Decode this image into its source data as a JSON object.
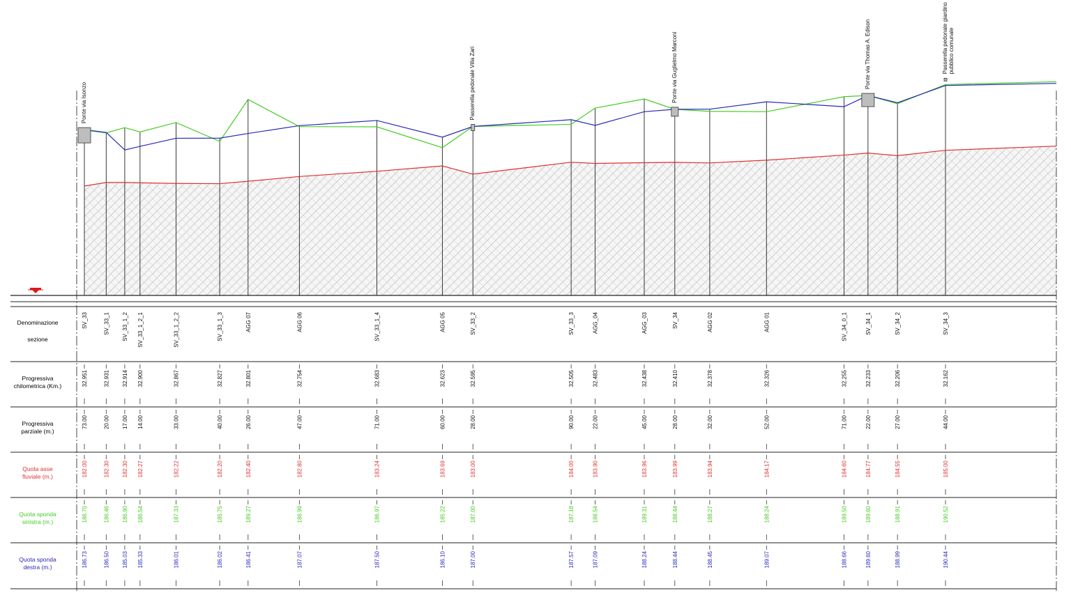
{
  "colors": {
    "thalweg": "#e03030",
    "left_bank": "#44cc22",
    "right_bank": "#2828b8",
    "ground_fill": "#eeeeee",
    "line": "#222222"
  },
  "reference_marker_icon": "water-level-marker-icon",
  "row_labels": {
    "denominazione": {
      "line1": "Denominazione",
      "line2": "sezione"
    },
    "progressiva_km": {
      "line1": "Progressiva",
      "line2": "chilometrica (Km.)"
    },
    "progressiva_parziale": {
      "line1": "Progressiva",
      "line2": "parziale (m.)"
    },
    "quota_asse": {
      "line1": "Quota asse",
      "line2": "fluviale (m.)"
    },
    "quota_sinistra": {
      "line1": "Quota sponda",
      "line2": "sinistra (m.)"
    },
    "quota_destra": {
      "line1": "Quota sponda",
      "line2": "destra (m.)"
    }
  },
  "structures": [
    {
      "label": "Ponte via Isonzo",
      "section": "SV_33"
    },
    {
      "label": "Passerella pedonale Villa Zari",
      "section": "SV_33_2"
    },
    {
      "label": "Ponte via Guglielmo Marconi",
      "section": "SV_34"
    },
    {
      "label": "Ponte via Thomas A. Edison",
      "section": "SV_34_1"
    },
    {
      "label": "Passerella pedonale giardino pubblico comunale",
      "section": "SV_34_3"
    }
  ],
  "sections": [
    {
      "name": "SV_33",
      "km": "32.951",
      "parziale": "73.00",
      "asse": "182.00",
      "sinistra": "186.70",
      "destra": "186.73"
    },
    {
      "name": "SV_33_1",
      "km": "32.931",
      "parziale": "20.00",
      "asse": "182.30",
      "sinistra": "186.46",
      "destra": "186.50"
    },
    {
      "name": "SV_33_1_2",
      "km": "32.914",
      "parziale": "17.00",
      "asse": "182.30",
      "sinistra": "186.90",
      "destra": "185.03"
    },
    {
      "name": "SV_33_1_2_1",
      "km": "32.900",
      "parziale": "14.00",
      "asse": "182.27",
      "sinistra": "186.54",
      "destra": "185.33"
    },
    {
      "name": "SV_33_1_2_2",
      "km": "32.867",
      "parziale": "33.00",
      "asse": "182.22",
      "sinistra": "187.33",
      "destra": "186.01"
    },
    {
      "name": "SV_33_1_3",
      "km": "32.827",
      "parziale": "40.00",
      "asse": "182.20",
      "sinistra": "185.75",
      "destra": "186.02"
    },
    {
      "name": "AGG 07",
      "km": "32.801",
      "parziale": "26.00",
      "asse": "182.40",
      "sinistra": "189.27",
      "destra": "186.41"
    },
    {
      "name": "AGG 06",
      "km": "32.754",
      "parziale": "47.00",
      "asse": "182.80",
      "sinistra": "186.99",
      "destra": "187.07"
    },
    {
      "name": "SV_33_1_4",
      "km": "32.683",
      "parziale": "71.00",
      "asse": "183.24",
      "sinistra": "186.97",
      "destra": "187.50"
    },
    {
      "name": "AGG 05",
      "km": "32.623",
      "parziale": "60.00",
      "asse": "183.69",
      "sinistra": "185.22",
      "destra": "186.10"
    },
    {
      "name": "SV_33_2",
      "km": "32.595",
      "parziale": "28.00",
      "asse": "183.00",
      "sinistra": "187.00",
      "destra": "187.00"
    },
    {
      "name": "SV_33_3",
      "km": "32.505",
      "parziale": "90.00",
      "asse": "184.00",
      "sinistra": "187.18",
      "destra": "187.57"
    },
    {
      "name": "AGG_04",
      "km": "32.483",
      "parziale": "22.00",
      "asse": "183.90",
      "sinistra": "188.54",
      "destra": "187.09"
    },
    {
      "name": "AGG_03",
      "km": "32.438",
      "parziale": "45.00",
      "asse": "183.96",
      "sinistra": "189.31",
      "destra": "188.24"
    },
    {
      "name": "SV_34",
      "km": "32.410",
      "parziale": "28.00",
      "asse": "183.99",
      "sinistra": "188.44",
      "destra": "188.44"
    },
    {
      "name": "AGG 02",
      "km": "32.378",
      "parziale": "32.00",
      "asse": "183.94",
      "sinistra": "188.27",
      "destra": "188.45"
    },
    {
      "name": "AGG 01",
      "km": "32.326",
      "parziale": "52.00",
      "asse": "184.17",
      "sinistra": "188.24",
      "destra": "189.07"
    },
    {
      "name": "SV_34_0_1",
      "km": "32.255",
      "parziale": "71.00",
      "asse": "184.60",
      "sinistra": "189.50",
      "destra": "188.66"
    },
    {
      "name": "SV_34_1",
      "km": "32.233",
      "parziale": "22.00",
      "asse": "184.77",
      "sinistra": "189.60",
      "destra": "189.60"
    },
    {
      "name": "SV_34_2",
      "km": "32.206",
      "parziale": "27.00",
      "asse": "184.55",
      "sinistra": "188.91",
      "destra": "188.99"
    },
    {
      "name": "SV_34_3",
      "km": "32.162",
      "parziale": "44.00",
      "asse": "185.00",
      "sinistra": "190.52",
      "destra": "190.44"
    }
  ]
}
